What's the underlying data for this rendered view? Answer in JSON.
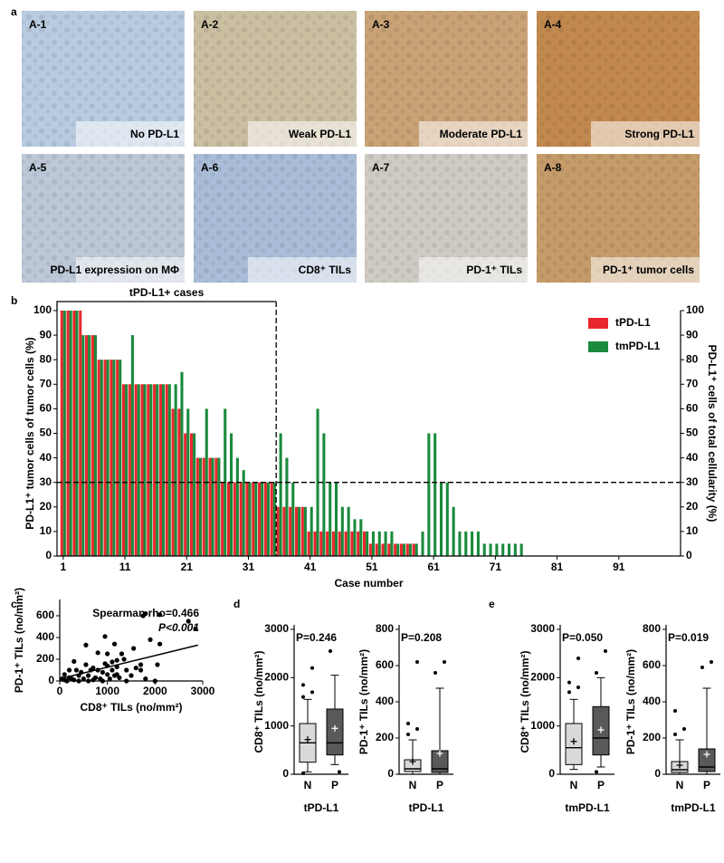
{
  "panel_labels": [
    "a",
    "b",
    "c",
    "d",
    "e"
  ],
  "panel_a": {
    "tiles": [
      {
        "id": "A-1",
        "caption": "No PD-L1"
      },
      {
        "id": "A-2",
        "caption": "Weak PD-L1"
      },
      {
        "id": "A-3",
        "caption": "Moderate PD-L1"
      },
      {
        "id": "A-4",
        "caption": "Strong PD-L1"
      },
      {
        "id": "A-5",
        "caption": "PD-L1 expression on MΦ"
      },
      {
        "id": "A-6",
        "caption": "CD8⁺ TILs"
      },
      {
        "id": "A-7",
        "caption": "PD-1⁺ TILs"
      },
      {
        "id": "A-8",
        "caption": "PD-1⁺ tumor cells"
      }
    ]
  },
  "chart_data": [
    {
      "type": "bar",
      "xlabel": "Case number",
      "ylabel": "PD-L1⁺ tumor cells of tumor cells (%)",
      "y2label": "PD-L1⁺ cells of total cellularity (%)",
      "annotation": "tPD-L1+ cases",
      "hline": 30,
      "vline": 35.5,
      "legend": "upper right",
      "x": [
        1,
        2,
        3,
        4,
        5,
        6,
        7,
        8,
        9,
        10,
        11,
        12,
        13,
        14,
        15,
        16,
        17,
        18,
        19,
        20,
        21,
        22,
        23,
        24,
        25,
        26,
        27,
        28,
        29,
        30,
        31,
        32,
        33,
        34,
        35,
        36,
        37,
        38,
        39,
        40,
        41,
        42,
        43,
        44,
        45,
        46,
        47,
        48,
        49,
        50,
        51,
        52,
        53,
        54,
        55,
        56,
        57,
        58,
        59,
        60,
        61,
        62,
        63,
        64,
        65,
        66,
        67,
        68,
        69,
        70,
        71,
        72,
        73,
        74,
        75,
        76,
        77,
        78,
        79,
        80,
        81,
        82,
        83,
        84,
        85,
        86,
        87,
        88,
        89,
        90,
        91,
        92,
        93,
        94,
        95,
        96,
        97,
        98,
        99,
        100
      ],
      "xlim": [
        0,
        101
      ],
      "xticks": [
        1,
        11,
        21,
        31,
        41,
        51,
        61,
        71,
        81,
        91
      ],
      "ylim": [
        0,
        100
      ],
      "yticks": [
        0,
        10,
        20,
        30,
        40,
        50,
        60,
        70,
        80,
        90,
        100
      ],
      "y2lim": [
        0,
        100
      ],
      "y2ticks": [
        0,
        10,
        20,
        30,
        40,
        50,
        60,
        70,
        80,
        90,
        100
      ],
      "series": [
        {
          "name": "tPD-L1",
          "color": "#e8262d",
          "values": [
            100,
            100,
            100,
            100,
            90,
            90,
            80,
            80,
            80,
            80,
            70,
            70,
            70,
            70,
            70,
            70,
            70,
            70,
            60,
            60,
            50,
            50,
            40,
            40,
            40,
            40,
            30,
            30,
            30,
            30,
            30,
            30,
            30,
            30,
            30,
            20,
            20,
            20,
            20,
            20,
            10,
            10,
            10,
            10,
            10,
            10,
            10,
            10,
            10,
            10,
            5,
            5,
            5,
            5,
            5,
            5,
            5,
            5,
            0,
            0,
            0,
            0,
            0,
            0,
            0,
            0,
            0,
            0,
            0,
            0,
            0,
            0,
            0,
            0,
            0,
            0,
            0,
            0,
            0,
            0,
            0,
            0,
            0,
            0,
            0,
            0,
            0,
            0,
            0,
            0,
            0,
            0,
            0,
            0,
            0,
            0,
            0,
            0,
            0,
            0
          ]
        },
        {
          "name": "tmPD-L1",
          "color": "#1a8a3c",
          "axis": "y2",
          "values": [
            100,
            100,
            100,
            90,
            90,
            90,
            80,
            80,
            80,
            80,
            70,
            90,
            70,
            70,
            70,
            70,
            70,
            70,
            70,
            75,
            60,
            50,
            40,
            60,
            40,
            40,
            60,
            50,
            40,
            35,
            30,
            30,
            30,
            30,
            30,
            50,
            40,
            30,
            20,
            20,
            20,
            60,
            50,
            30,
            30,
            20,
            20,
            15,
            15,
            10,
            10,
            10,
            10,
            10,
            5,
            5,
            5,
            5,
            10,
            50,
            50,
            30,
            30,
            20,
            10,
            10,
            10,
            10,
            5,
            5,
            5,
            5,
            5,
            5,
            5,
            0,
            0,
            0,
            0,
            0,
            0,
            0,
            0,
            0,
            0,
            0,
            0,
            0,
            0,
            0,
            0,
            0,
            0,
            0,
            0,
            0,
            0,
            0,
            0,
            0
          ]
        }
      ]
    },
    {
      "type": "scatter",
      "xlabel": "CD8⁺ TILs (no/mm²)",
      "ylabel": "PD-1⁺ TILs (no/mm²)",
      "annotations": [
        "Spearman rho=0.466",
        "P<0.001"
      ],
      "annotation_color": "#e8262d",
      "xlim": [
        0,
        3000
      ],
      "xticks": [
        0,
        1000,
        2000,
        3000
      ],
      "ylim": [
        0,
        750
      ],
      "yticks": [
        0,
        200,
        400,
        600
      ],
      "x": [
        2700,
        2850,
        1800,
        2100,
        1750,
        1900,
        950,
        1000,
        800,
        550,
        1150,
        1200,
        1300,
        1200,
        1550,
        1350,
        1700,
        1600,
        1700,
        2100,
        2050,
        1400,
        1000,
        1100,
        1150,
        950,
        1100,
        800,
        700,
        600,
        500,
        400,
        300,
        200,
        150,
        100,
        250,
        350,
        450,
        650,
        750,
        850,
        900,
        1050,
        1250,
        1400,
        1500,
        1800,
        2000,
        400,
        600,
        700,
        200,
        300,
        100,
        1000,
        1200,
        550,
        50,
        900
      ],
      "y": [
        550,
        480,
        620,
        610,
        600,
        380,
        410,
        250,
        260,
        330,
        340,
        190,
        250,
        130,
        300,
        200,
        100,
        120,
        150,
        340,
        150,
        100,
        60,
        100,
        50,
        160,
        175,
        100,
        120,
        50,
        20,
        50,
        10,
        30,
        0,
        10,
        20,
        100,
        80,
        100,
        30,
        20,
        0,
        20,
        30,
        0,
        50,
        20,
        0,
        0,
        0,
        10,
        100,
        180,
        60,
        140,
        60,
        150,
        20,
        80
      ],
      "color": "#000000",
      "fit": {
        "x": [
          0,
          2900
        ],
        "y": [
          20,
          330
        ]
      }
    },
    {
      "type": "box",
      "title": "P=0.246",
      "title_color": "#000000",
      "xlabel": "tPD-L1",
      "ylabel": "CD8⁺ TILs (no/mm²)",
      "categories": [
        "N",
        "P"
      ],
      "colors": [
        "#d9d9d9",
        "#595959"
      ],
      "ylim": [
        0,
        3000
      ],
      "yticks": [
        0,
        1000,
        2000,
        3000
      ],
      "boxes": [
        {
          "whislo": 50,
          "q1": 250,
          "med": 650,
          "q3": 1050,
          "whishi": 1550,
          "mean": 720,
          "fliers": [
            1600,
            1700,
            1850,
            2200,
            20
          ]
        },
        {
          "whislo": 200,
          "q1": 400,
          "med": 650,
          "q3": 1350,
          "whishi": 2050,
          "mean": 950,
          "fliers": [
            2550,
            50
          ]
        }
      ]
    },
    {
      "type": "box",
      "title": "P=0.208",
      "title_color": "#000000",
      "xlabel": "tPD-L1",
      "ylabel": "PD-1⁺ TILs (no/mm²)",
      "categories": [
        "N",
        "P"
      ],
      "colors": [
        "#d9d9d9",
        "#595959"
      ],
      "ylim": [
        0,
        800
      ],
      "yticks": [
        0,
        200,
        400,
        600,
        800
      ],
      "boxes": [
        {
          "whislo": 0,
          "q1": 15,
          "med": 30,
          "q3": 80,
          "whishi": 190,
          "mean": 70,
          "fliers": [
            220,
            250,
            280,
            620
          ]
        },
        {
          "whislo": 0,
          "q1": 10,
          "med": 30,
          "q3": 130,
          "whishi": 475,
          "mean": 115,
          "fliers": [
            560,
            620
          ]
        }
      ]
    },
    {
      "type": "box",
      "title": "P=0.050",
      "title_color": "#e8262d",
      "xlabel": "tmPD-L1",
      "ylabel": "CD8⁺ TILs (no/mm²)",
      "categories": [
        "N",
        "P"
      ],
      "colors": [
        "#d9d9d9",
        "#595959"
      ],
      "ylim": [
        0,
        3000
      ],
      "yticks": [
        0,
        1000,
        2000,
        3000
      ],
      "boxes": [
        {
          "whislo": 100,
          "q1": 200,
          "med": 550,
          "q3": 1050,
          "whishi": 1550,
          "mean": 680,
          "fliers": [
            1700,
            1800,
            1900,
            2400
          ]
        },
        {
          "whislo": 150,
          "q1": 400,
          "med": 750,
          "q3": 1400,
          "whishi": 2000,
          "mean": 920,
          "fliers": [
            2100,
            2550,
            50
          ]
        }
      ]
    },
    {
      "type": "box",
      "title": "P=0.019",
      "title_color": "#e8262d",
      "xlabel": "tmPD-L1",
      "ylabel": "PD-1⁺ TILs (no/mm²)",
      "categories": [
        "N",
        "P"
      ],
      "colors": [
        "#d9d9d9",
        "#595959"
      ],
      "ylim": [
        0,
        800
      ],
      "yticks": [
        0,
        200,
        400,
        600,
        800
      ],
      "boxes": [
        {
          "whislo": 0,
          "q1": 10,
          "med": 25,
          "q3": 70,
          "whishi": 190,
          "mean": 50,
          "fliers": [
            220,
            250,
            350
          ]
        },
        {
          "whislo": 0,
          "q1": 15,
          "med": 40,
          "q3": 140,
          "whishi": 475,
          "mean": 110,
          "fliers": [
            590,
            620
          ]
        }
      ]
    }
  ]
}
